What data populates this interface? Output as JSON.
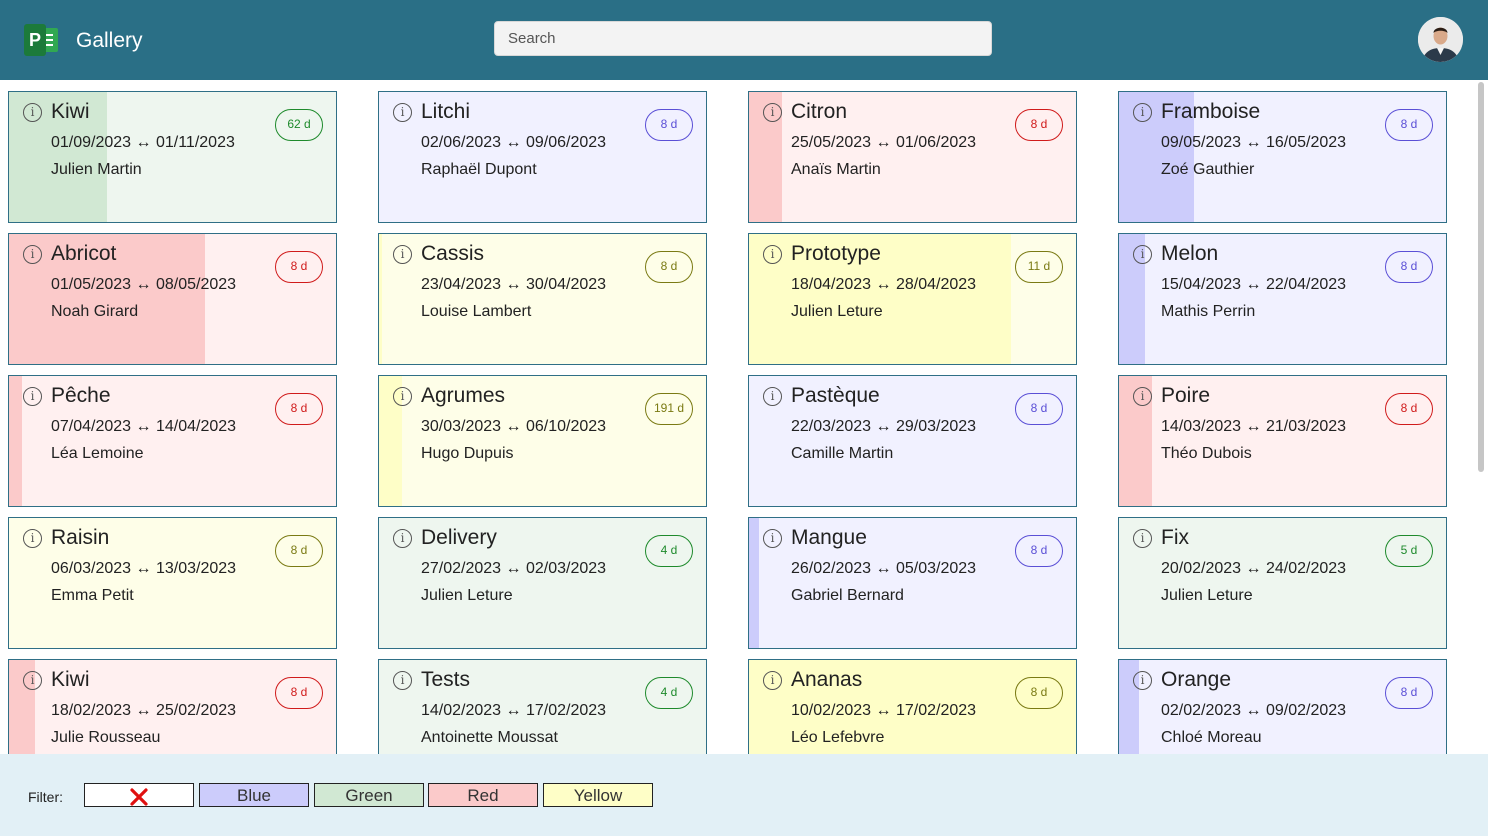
{
  "header": {
    "title": "Gallery",
    "logo_letter": "P",
    "search_placeholder": "Search",
    "avatar": "user-avatar"
  },
  "colors": {
    "header_bg": "#2a6f86",
    "card_border": "#2f6f86",
    "green": {
      "light": "#eef6ef",
      "fill": "#d1e8d3",
      "badge": "#1e8a2c"
    },
    "blue": {
      "light": "#f1f1ff",
      "fill": "#ccccfb",
      "badge": "#5a4fd6"
    },
    "red": {
      "light": "#fff0f0",
      "fill": "#fbcaca",
      "badge": "#d01b1b"
    },
    "yellow": {
      "light": "#fefee8",
      "fill": "#fefec7",
      "badge": "#7a7a13"
    }
  },
  "cards": [
    {
      "title": "Kiwi",
      "dates": "01/09/2023 ↔ 01/11/2023",
      "owner": "Julien Martin",
      "badge": "62 d",
      "color": "green",
      "progress": 0.3
    },
    {
      "title": "Litchi",
      "dates": "02/06/2023 ↔ 09/06/2023",
      "owner": "Raphaël Dupont",
      "badge": "8 d",
      "color": "blue",
      "progress": 0.0
    },
    {
      "title": "Citron",
      "dates": "25/05/2023 ↔ 01/06/2023",
      "owner": "Anaïs Martin",
      "badge": "8 d",
      "color": "red",
      "progress": 0.1
    },
    {
      "title": "Framboise",
      "dates": "09/05/2023 ↔ 16/05/2023",
      "owner": "Zoé Gauthier",
      "badge": "8 d",
      "color": "blue",
      "progress": 0.23
    },
    {
      "title": "Abricot",
      "dates": "01/05/2023 ↔ 08/05/2023",
      "owner": "Noah Girard",
      "badge": "8 d",
      "color": "red",
      "progress": 0.6
    },
    {
      "title": "Cassis",
      "dates": "23/04/2023 ↔ 30/04/2023",
      "owner": "Louise Lambert",
      "badge": "8 d",
      "color": "yellow",
      "progress": 0.01
    },
    {
      "title": "Prototype",
      "dates": "18/04/2023 ↔ 28/04/2023",
      "owner": "Julien Leture",
      "badge": "11 d",
      "color": "yellow",
      "progress": 0.8
    },
    {
      "title": "Melon",
      "dates": "15/04/2023 ↔ 22/04/2023",
      "owner": "Mathis Perrin",
      "badge": "8 d",
      "color": "blue",
      "progress": 0.08
    },
    {
      "title": "Pêche",
      "dates": "07/04/2023 ↔ 14/04/2023",
      "owner": "Léa Lemoine",
      "badge": "8 d",
      "color": "red",
      "progress": 0.04
    },
    {
      "title": "Agrumes",
      "dates": "30/03/2023 ↔ 06/10/2023",
      "owner": "Hugo Dupuis",
      "badge": "191 d",
      "color": "yellow",
      "progress": 0.07
    },
    {
      "title": "Pastèque",
      "dates": "22/03/2023 ↔ 29/03/2023",
      "owner": "Camille Martin",
      "badge": "8 d",
      "color": "blue",
      "progress": 0.0
    },
    {
      "title": "Poire",
      "dates": "14/03/2023 ↔ 21/03/2023",
      "owner": "Théo Dubois",
      "badge": "8 d",
      "color": "red",
      "progress": 0.1
    },
    {
      "title": "Raisin",
      "dates": "06/03/2023 ↔ 13/03/2023",
      "owner": "Emma Petit",
      "badge": "8 d",
      "color": "yellow",
      "progress": 0.0
    },
    {
      "title": "Delivery",
      "dates": "27/02/2023 ↔ 02/03/2023",
      "owner": "Julien Leture",
      "badge": "4 d",
      "color": "green",
      "progress": 0.0
    },
    {
      "title": "Mangue",
      "dates": "26/02/2023 ↔ 05/03/2023",
      "owner": "Gabriel Bernard",
      "badge": "8 d",
      "color": "blue",
      "progress": 0.03
    },
    {
      "title": "Fix",
      "dates": "20/02/2023 ↔ 24/02/2023",
      "owner": "Julien Leture",
      "badge": "5 d",
      "color": "green",
      "progress": 0.0
    },
    {
      "title": "Kiwi",
      "dates": "18/02/2023 ↔ 25/02/2023",
      "owner": "Julie Rousseau",
      "badge": "8 d",
      "color": "red",
      "progress": 0.08
    },
    {
      "title": "Tests",
      "dates": "14/02/2023 ↔ 17/02/2023",
      "owner": "Antoinette Moussat",
      "badge": "4 d",
      "color": "green",
      "progress": 0.0
    },
    {
      "title": "Ananas",
      "dates": "10/02/2023 ↔ 17/02/2023",
      "owner": "Léo Lefebvre",
      "badge": "8 d",
      "color": "yellow",
      "progress": 1.0
    },
    {
      "title": "Orange",
      "dates": "02/02/2023 ↔ 09/02/2023",
      "owner": "Chloé Moreau",
      "badge": "8 d",
      "color": "blue",
      "progress": 0.06
    }
  ],
  "filter": {
    "label": "Filter:",
    "clear_icon": "red-x-icon",
    "options": [
      {
        "label": "Blue",
        "bg": "#ccccfb"
      },
      {
        "label": "Green",
        "bg": "#d1e8d3"
      },
      {
        "label": "Red",
        "bg": "#fbcaca"
      },
      {
        "label": "Yellow",
        "bg": "#fefec7"
      }
    ]
  }
}
